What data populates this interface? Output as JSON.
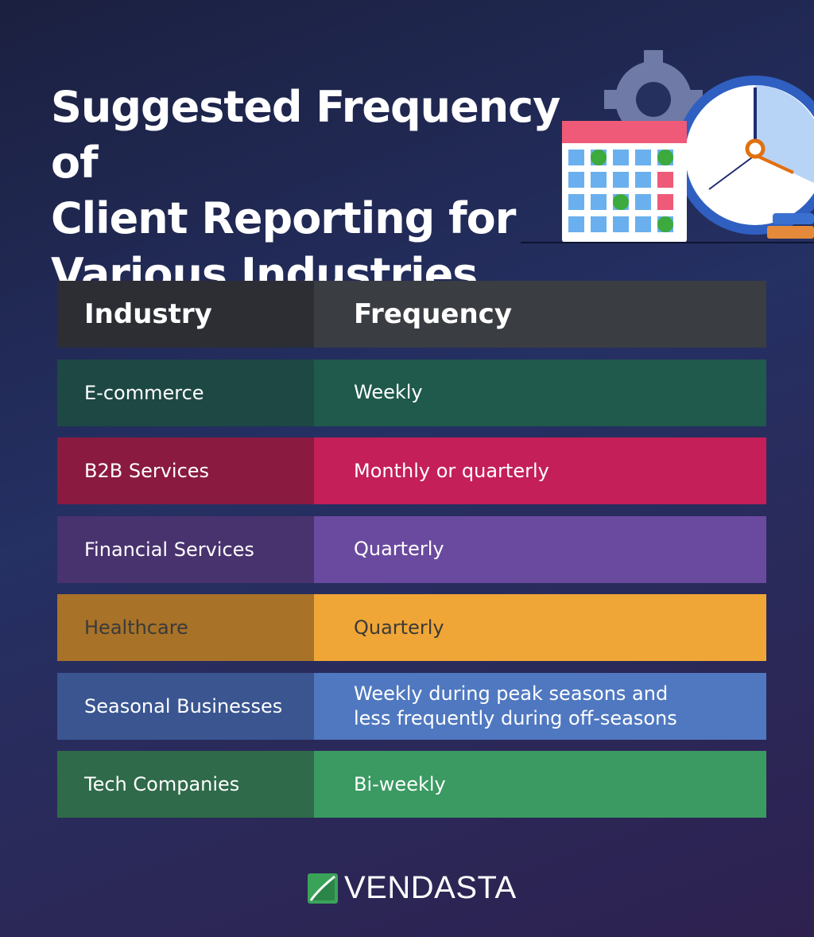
{
  "title": {
    "line1": "Suggested Frequency of",
    "line2": "Client Reporting for",
    "line3": "Various Industries"
  },
  "table": {
    "headers": [
      "Industry",
      "Frequency"
    ],
    "rows": [
      {
        "industry": "E-commerce",
        "frequency": "Weekly",
        "colors": [
          "#1d4844",
          "#1f5a4c"
        ],
        "text": "#ffffff"
      },
      {
        "industry": "B2B Services",
        "frequency": "Monthly or quarterly",
        "colors": [
          "#8a1a40",
          "#c41f58"
        ],
        "text": "#ffffff"
      },
      {
        "industry": "Financial Services",
        "frequency": "Quarterly",
        "colors": [
          "#48336f",
          "#6a4a9e"
        ],
        "text": "#ffffff"
      },
      {
        "industry": "Healthcare",
        "frequency": "Quarterly",
        "colors": [
          "#a87228",
          "#f0a636"
        ],
        "text": "#3a3a3a"
      },
      {
        "industry": "Seasonal Businesses",
        "frequency": "Weekly during peak seasons and less frequently during off-seasons",
        "colors": [
          "#3a5590",
          "#4f78c0"
        ],
        "text": "#ffffff"
      },
      {
        "industry": "Tech Companies",
        "frequency": "Bi-weekly",
        "colors": [
          "#2f6a4a",
          "#3a9a62"
        ],
        "text": "#ffffff"
      }
    ],
    "header_colors": [
      "#2c2e34",
      "#3a3d42"
    ]
  },
  "illustration": {
    "icons": [
      "gear-icon",
      "calendar-icon",
      "clock-icon",
      "books-icon"
    ]
  },
  "logo": {
    "text": "VENDASTA",
    "color": "#3aa35a"
  }
}
